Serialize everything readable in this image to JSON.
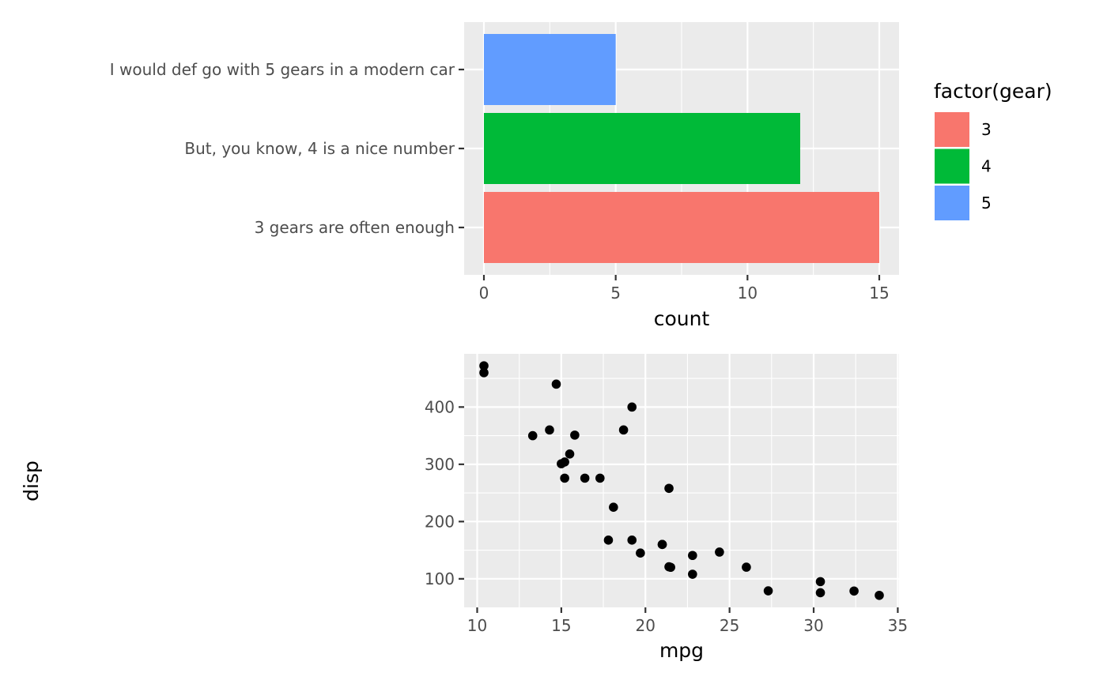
{
  "chart_data": [
    {
      "type": "bar",
      "orientation": "horizontal",
      "categories": [
        "3 gears are often enough",
        "But, you know, 4 is a nice number",
        "I would def go with 5 gears in a modern car"
      ],
      "values": [
        15,
        12,
        5
      ],
      "colors": [
        "#F8766D",
        "#00BA38",
        "#619CFF"
      ],
      "xlabel": "count",
      "ylabel": "",
      "xlim": [
        -0.75,
        15.75
      ],
      "xticks": [
        0,
        5,
        10,
        15
      ],
      "grid": true,
      "legend": {
        "title": "factor(gear)",
        "position": "right",
        "entries": [
          "3",
          "4",
          "5"
        ],
        "colors": [
          "#F8766D",
          "#00BA38",
          "#619CFF"
        ]
      }
    },
    {
      "type": "scatter",
      "xlabel": "mpg",
      "ylabel": "disp",
      "xlim": [
        9.225,
        35.075
      ],
      "ylim": [
        50.1,
        492.9
      ],
      "xticks": [
        10,
        15,
        20,
        25,
        30,
        35
      ],
      "yticks": [
        100,
        200,
        300,
        400
      ],
      "grid": true,
      "point_color": "#000000",
      "points": [
        {
          "x": 21.0,
          "y": 160
        },
        {
          "x": 21.0,
          "y": 160
        },
        {
          "x": 22.8,
          "y": 108
        },
        {
          "x": 21.4,
          "y": 258
        },
        {
          "x": 18.7,
          "y": 360
        },
        {
          "x": 18.1,
          "y": 225
        },
        {
          "x": 14.3,
          "y": 360
        },
        {
          "x": 24.4,
          "y": 146.7
        },
        {
          "x": 22.8,
          "y": 140.8
        },
        {
          "x": 19.2,
          "y": 167.6
        },
        {
          "x": 17.8,
          "y": 167.6
        },
        {
          "x": 16.4,
          "y": 275.8
        },
        {
          "x": 17.3,
          "y": 275.8
        },
        {
          "x": 15.2,
          "y": 275.8
        },
        {
          "x": 10.4,
          "y": 472
        },
        {
          "x": 10.4,
          "y": 460
        },
        {
          "x": 14.7,
          "y": 440
        },
        {
          "x": 32.4,
          "y": 78.7
        },
        {
          "x": 30.4,
          "y": 75.7
        },
        {
          "x": 33.9,
          "y": 71.1
        },
        {
          "x": 21.5,
          "y": 120.1
        },
        {
          "x": 15.5,
          "y": 318
        },
        {
          "x": 15.2,
          "y": 304
        },
        {
          "x": 13.3,
          "y": 350
        },
        {
          "x": 19.2,
          "y": 400
        },
        {
          "x": 27.3,
          "y": 79
        },
        {
          "x": 26.0,
          "y": 120.3
        },
        {
          "x": 30.4,
          "y": 95.1
        },
        {
          "x": 15.8,
          "y": 351
        },
        {
          "x": 19.7,
          "y": 145
        },
        {
          "x": 15.0,
          "y": 301
        },
        {
          "x": 21.4,
          "y": 121
        }
      ]
    }
  ]
}
